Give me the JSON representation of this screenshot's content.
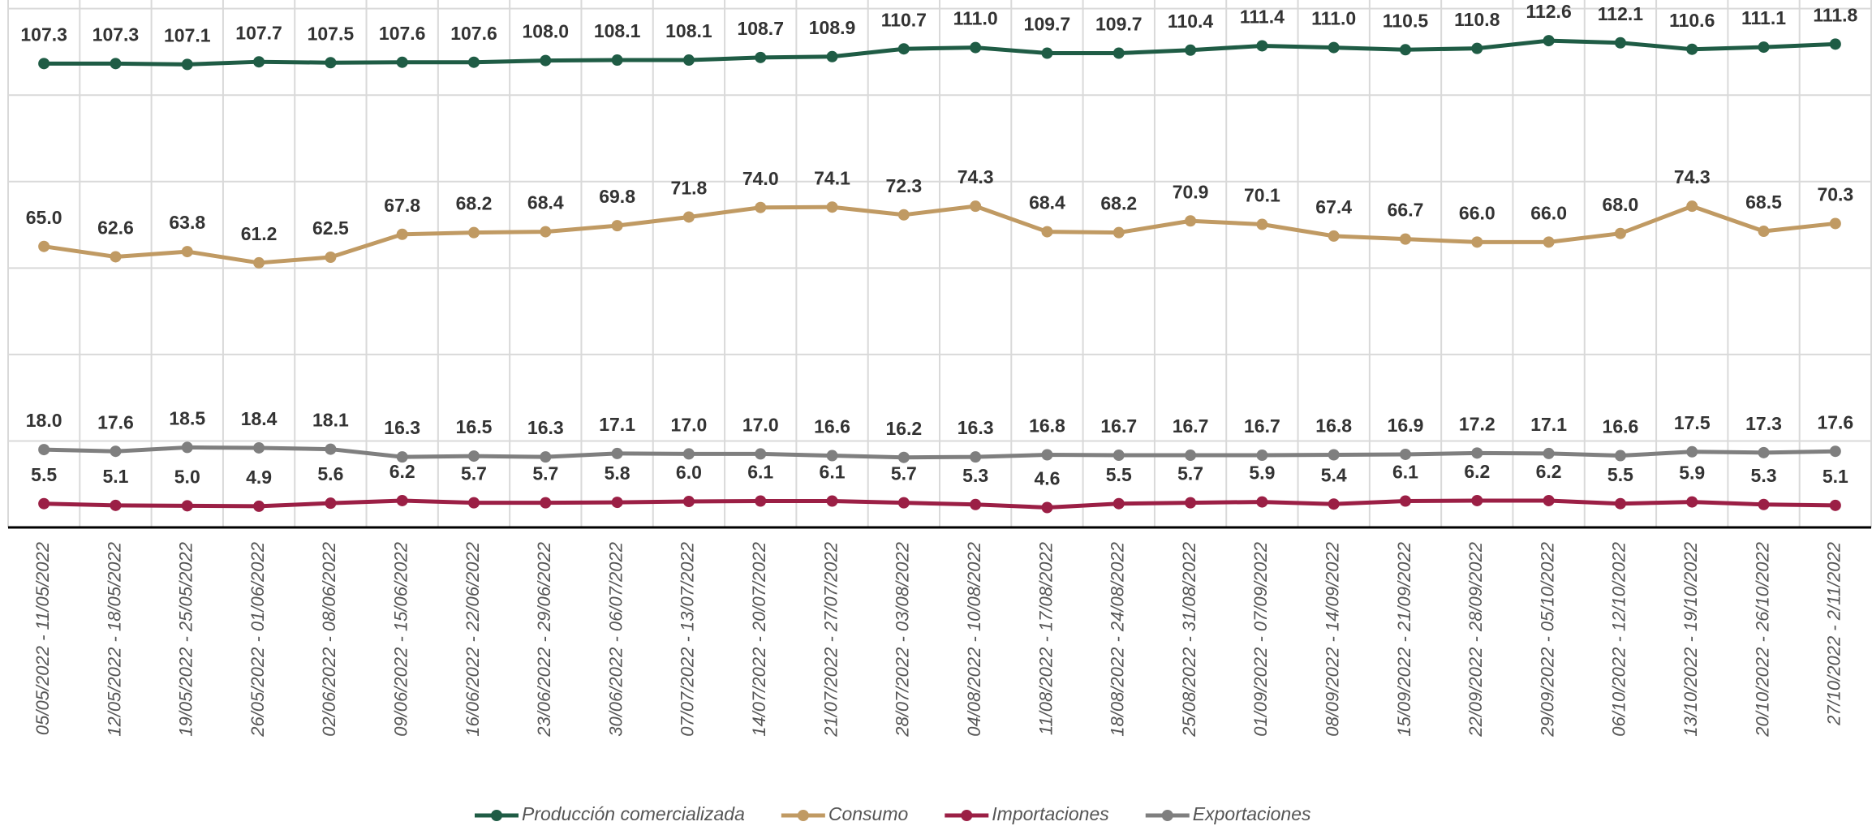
{
  "chart_data": {
    "type": "line",
    "categories": [
      "05/05/2022 - 11/05/2022",
      "12/05/2022 - 18/05/2022",
      "19/05/2022 - 25/05/2022",
      "26/05/2022 - 01/06/2022",
      "02/06/2022 - 08/06/2022",
      "09/06/2022 - 15/06/2022",
      "16/06/2022 - 22/06/2022",
      "23/06/2022 - 29/06/2022",
      "30/06/2022 - 06/07/2022",
      "07/07/2022 - 13/07/2022",
      "14/07/2022 - 20/07/2022",
      "21/07/2022 - 27/07/2022",
      "28/07/2022 - 03/08/2022",
      "04/08/2022 - 10/08/2022",
      "11/08/2022 - 17/08/2022",
      "18/08/2022 - 24/08/2022",
      "25/08/2022 - 31/08/2022",
      "01/09/2022 - 07/09/2022",
      "08/09/2022 - 14/09/2022",
      "15/09/2022 - 21/09/2022",
      "22/09/2022 - 28/09/2022",
      "29/09/2022 - 05/10/2022",
      "06/10/2022 - 12/10/2022",
      "13/10/2022 - 19/10/2022",
      "20/10/2022 - 26/10/2022",
      "27/10/2022 - 2/11/2022"
    ],
    "series": [
      {
        "name": "Producción comercializada",
        "color": "#1f5c45",
        "values": [
          107.3,
          107.3,
          107.1,
          107.7,
          107.5,
          107.6,
          107.6,
          108.0,
          108.1,
          108.1,
          108.7,
          108.9,
          110.7,
          111.0,
          109.7,
          109.7,
          110.4,
          111.4,
          111.0,
          110.5,
          110.8,
          112.6,
          112.1,
          110.6,
          111.1,
          111.8
        ],
        "value_labels": [
          "107.3",
          "107.3",
          "107.1",
          "107.7",
          "107.5",
          "107.6",
          "107.6",
          "108.0",
          "108.1",
          "108.1",
          "108.7",
          "108.9",
          "110.7",
          "111.0",
          "109.7",
          "109.7",
          "110.4",
          "111.4",
          "111.0",
          "110.5",
          "110.8",
          "112.6",
          "112.1",
          "110.6",
          "111.1",
          "111.8"
        ]
      },
      {
        "name": "Consumo",
        "color": "#c09a63",
        "values": [
          65.0,
          62.6,
          63.8,
          61.2,
          62.5,
          67.8,
          68.2,
          68.4,
          69.8,
          71.8,
          74.0,
          74.1,
          72.3,
          74.3,
          68.4,
          68.2,
          70.9,
          70.1,
          67.4,
          66.7,
          66.0,
          66.0,
          68.0,
          74.3,
          68.5,
          70.3
        ],
        "value_labels": [
          "65.0",
          "62.6",
          "63.8",
          "61.2",
          "62.5",
          "67.8",
          "68.2",
          "68.4",
          "69.8",
          "71.8",
          "74.0",
          "74.1",
          "72.3",
          "74.3",
          "68.4",
          "68.2",
          "70.9",
          "70.1",
          "67.4",
          "66.7",
          "66.0",
          "66.0",
          "68.0",
          "74.3",
          "68.5",
          "70.3"
        ]
      },
      {
        "name": "Importaciones",
        "color": "#9b1f45",
        "values": [
          5.5,
          5.1,
          5.0,
          4.9,
          5.6,
          6.2,
          5.7,
          5.7,
          5.8,
          6.0,
          6.1,
          6.1,
          5.7,
          5.3,
          4.6,
          5.5,
          5.7,
          5.9,
          5.4,
          6.1,
          6.2,
          6.2,
          5.5,
          5.9,
          5.3,
          5.1
        ],
        "value_labels": [
          "5.5",
          "5.1",
          "5.0",
          "4.9",
          "5.6",
          "6.2",
          "5.7",
          "5.7",
          "5.8",
          "6.0",
          "6.1",
          "6.1",
          "5.7",
          "5.3",
          "4.6",
          "5.5",
          "5.7",
          "5.9",
          "5.4",
          "6.1",
          "6.2",
          "6.2",
          "5.5",
          "5.9",
          "5.3",
          "5.1"
        ]
      },
      {
        "name": "Exportaciones",
        "color": "#7f7f7f",
        "values": [
          18.0,
          17.6,
          18.5,
          18.4,
          18.1,
          16.3,
          16.5,
          16.3,
          17.1,
          17.0,
          17.0,
          16.6,
          16.2,
          16.3,
          16.8,
          16.7,
          16.7,
          16.7,
          16.8,
          16.9,
          17.2,
          17.1,
          16.6,
          17.5,
          17.3,
          17.6
        ],
        "value_labels": [
          "18.0",
          "17.6",
          "18.5",
          "18.4",
          "18.1",
          "16.3",
          "16.5",
          "16.3",
          "17.1",
          "17.0",
          "17.0",
          "16.6",
          "16.2",
          "16.3",
          "16.8",
          "16.7",
          "16.7",
          "16.7",
          "16.8",
          "16.9",
          "17.2",
          "17.1",
          "16.6",
          "17.5",
          "17.3",
          "17.6"
        ]
      }
    ],
    "ylim": [
      0,
      122
    ],
    "yticks": [
      0,
      20,
      40,
      60,
      80,
      100,
      120
    ],
    "grid": true,
    "legend": "bottom"
  }
}
